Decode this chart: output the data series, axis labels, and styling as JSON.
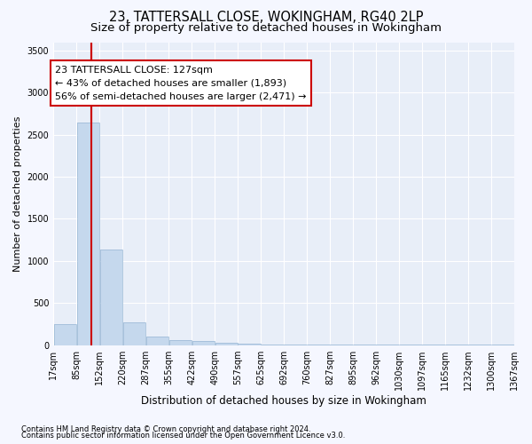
{
  "title1": "23, TATTERSALL CLOSE, WOKINGHAM, RG40 2LP",
  "title2": "Size of property relative to detached houses in Wokingham",
  "xlabel": "Distribution of detached houses by size in Wokingham",
  "ylabel": "Number of detached properties",
  "footnote1": "Contains HM Land Registry data © Crown copyright and database right 2024.",
  "footnote2": "Contains public sector information licensed under the Open Government Licence v3.0.",
  "annotation_line1": "23 TATTERSALL CLOSE: 127sqm",
  "annotation_line2": "← 43% of detached houses are smaller (1,893)",
  "annotation_line3": "56% of semi-detached houses are larger (2,471) →",
  "property_size": 127,
  "bar_left_edges": [
    17,
    85,
    152,
    220,
    287,
    355,
    422,
    490,
    557,
    625,
    692,
    760,
    827,
    895,
    962,
    1030,
    1097,
    1165,
    1232,
    1300
  ],
  "bar_widths": [
    68,
    67,
    68,
    67,
    68,
    67,
    68,
    67,
    68,
    67,
    68,
    67,
    68,
    67,
    68,
    67,
    68,
    67,
    68,
    67
  ],
  "bar_heights": [
    250,
    2650,
    1140,
    270,
    100,
    55,
    45,
    30,
    15,
    10,
    7,
    5,
    4,
    3,
    2,
    2,
    1,
    1,
    1,
    1
  ],
  "bar_color": "#c5d8ed",
  "bar_edgecolor": "#a0bcd8",
  "red_line_x": 127,
  "ylim": [
    0,
    3600
  ],
  "yticks": [
    0,
    500,
    1000,
    1500,
    2000,
    2500,
    3000,
    3500
  ],
  "xtick_labels": [
    "17sqm",
    "85sqm",
    "152sqm",
    "220sqm",
    "287sqm",
    "355sqm",
    "422sqm",
    "490sqm",
    "557sqm",
    "625sqm",
    "692sqm",
    "760sqm",
    "827sqm",
    "895sqm",
    "962sqm",
    "1030sqm",
    "1097sqm",
    "1165sqm",
    "1232sqm",
    "1300sqm",
    "1367sqm"
  ],
  "background_color": "#f5f7ff",
  "plot_bg_color": "#e8eef8",
  "grid_color": "#ffffff",
  "annotation_box_color": "#cc0000",
  "title1_fontsize": 10.5,
  "title2_fontsize": 9.5,
  "xlabel_fontsize": 8.5,
  "ylabel_fontsize": 8,
  "tick_fontsize": 7,
  "annotation_fontsize": 8,
  "footnote_fontsize": 6
}
